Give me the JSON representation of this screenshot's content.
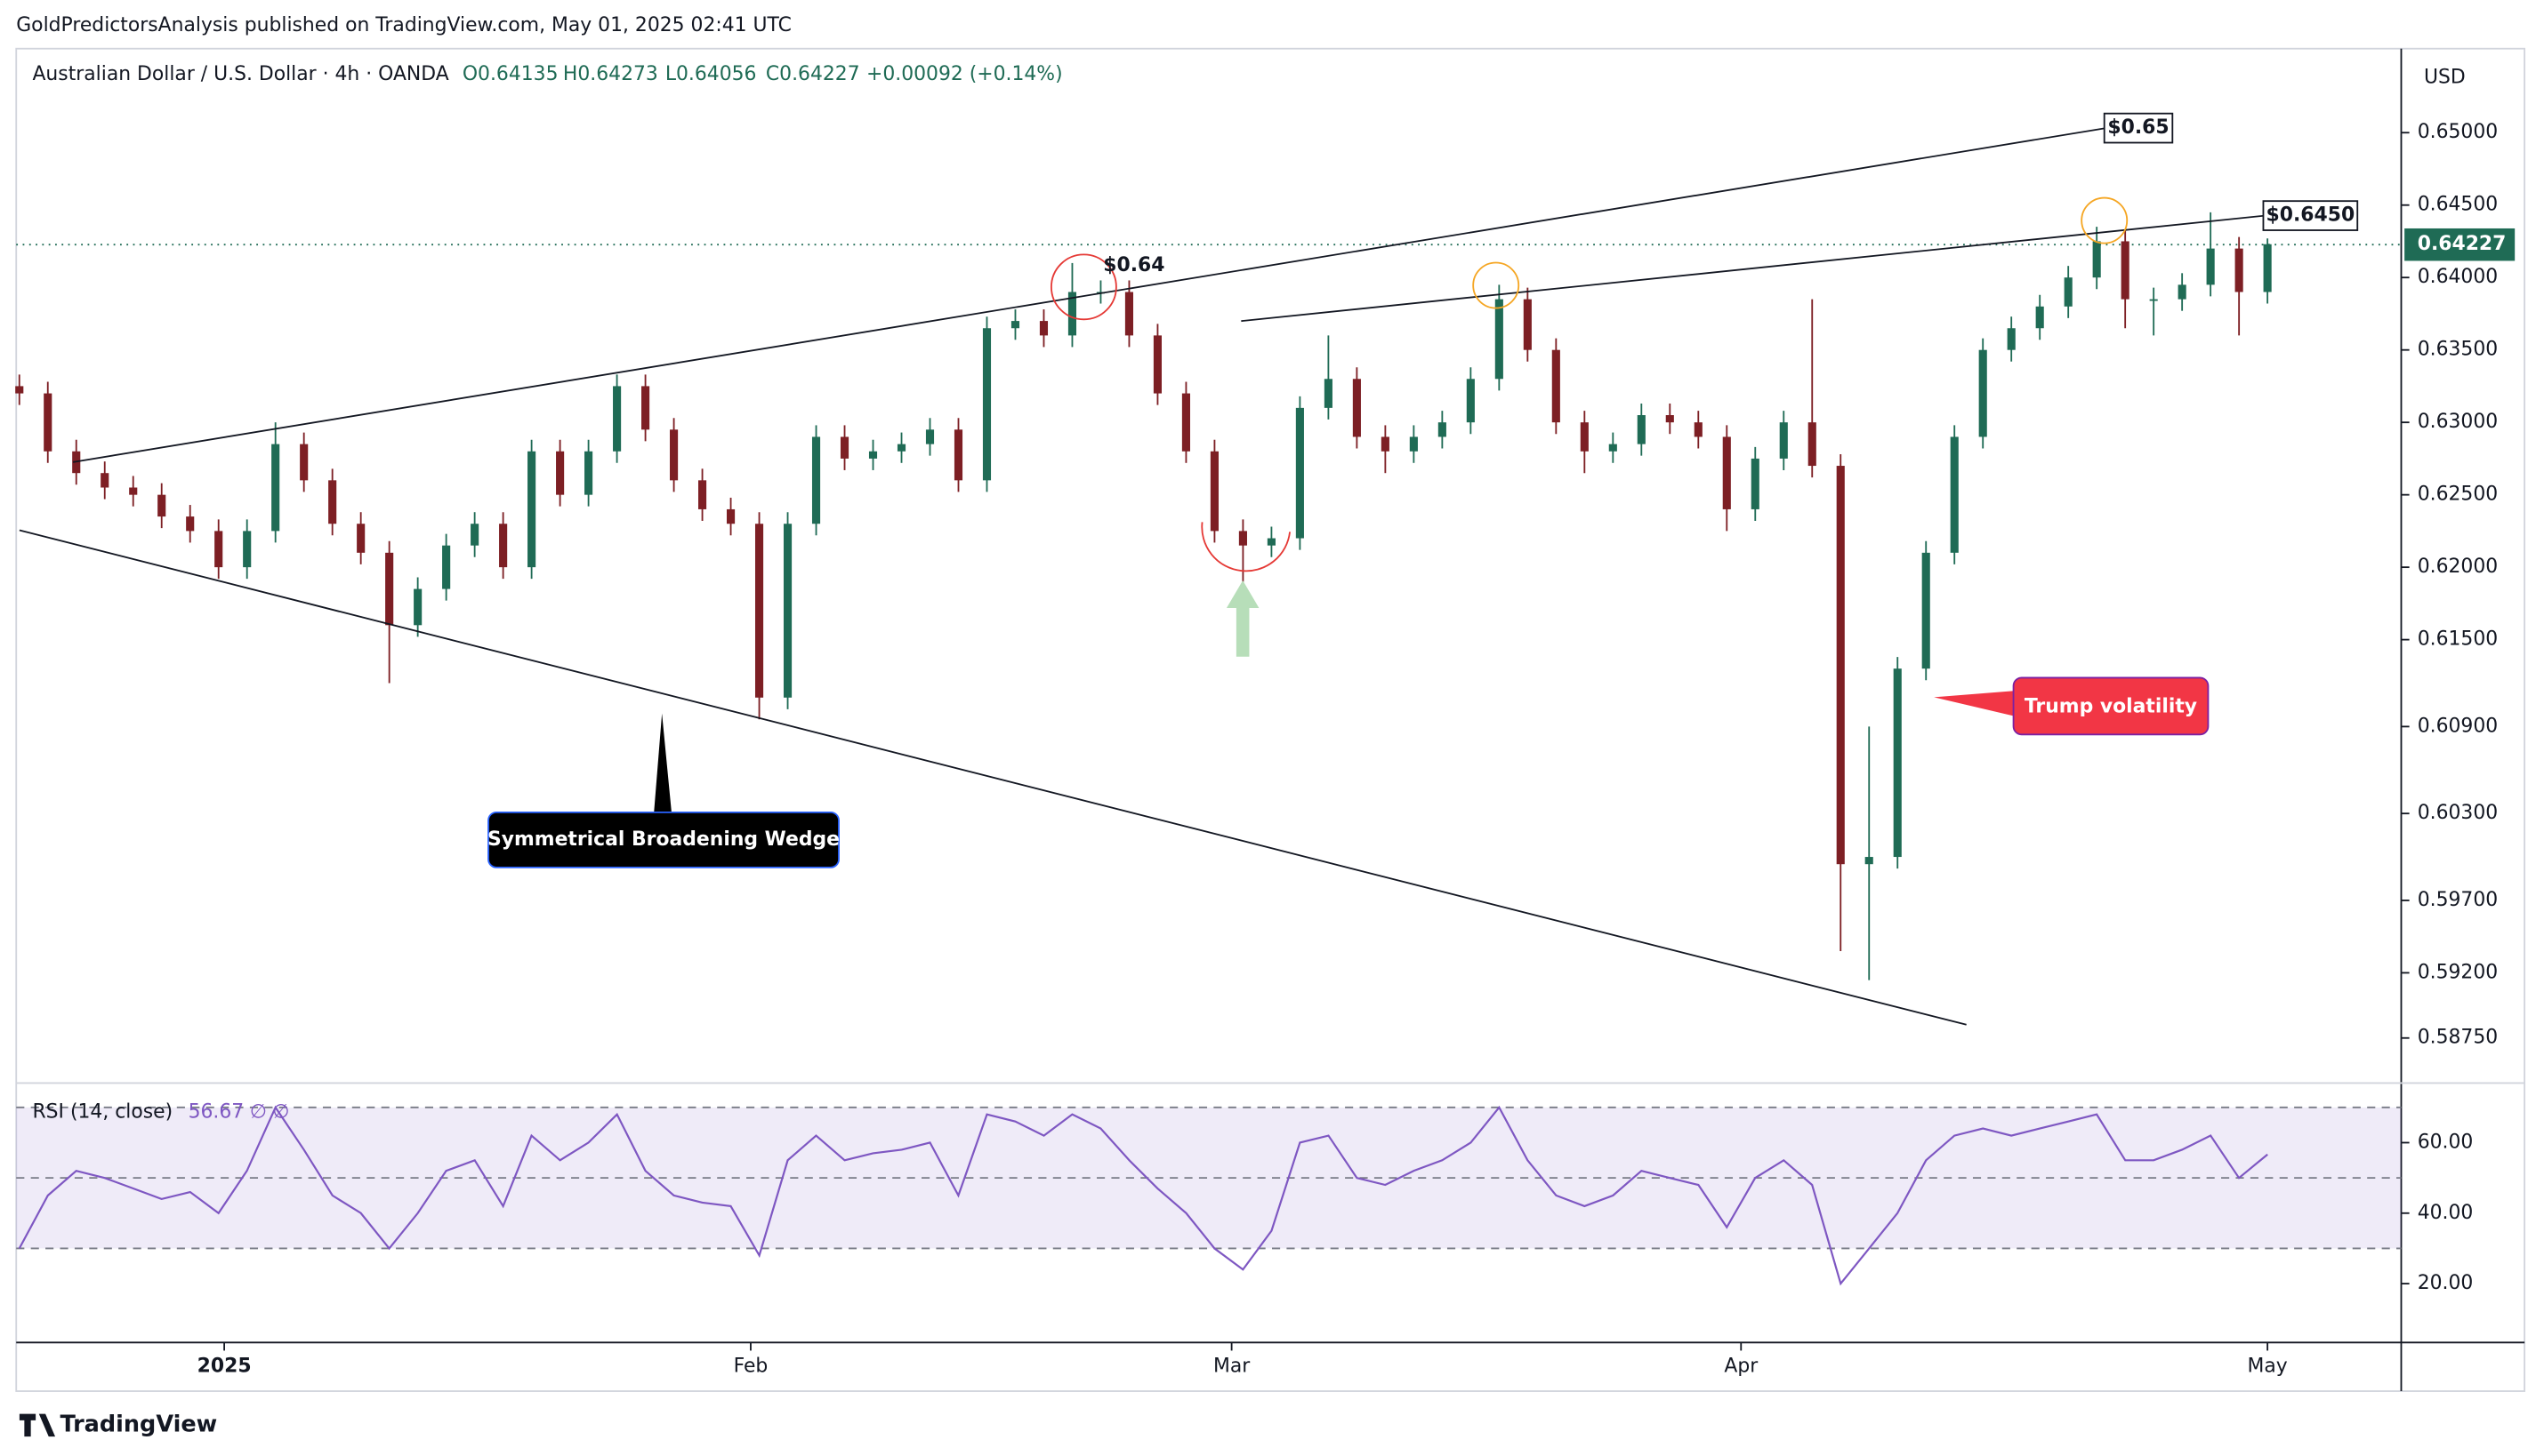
{
  "publisher": "GoldPredictorsAnalysis published on TradingView.com, May 01, 2025 02:41 UTC",
  "brand": "TradingView",
  "chart_data": {
    "type": "candlestick",
    "symbol": "Australian Dollar / U.S. Dollar · 4h · OANDA",
    "ohlc_header": [
      "O0.64135",
      "H0.64273",
      "L0.64056",
      "C0.64227",
      "+0.00092 (+0.14%)"
    ],
    "currency": "USD",
    "up_color": "#1f6b55",
    "down_color": "#7d1f24",
    "ylim": [
      0.5845,
      0.6558
    ],
    "yticks": [
      {
        "value": 0.65,
        "label": "0.65000"
      },
      {
        "value": 0.645,
        "label": "0.64500"
      },
      {
        "value": 0.64,
        "label": "0.64000"
      },
      {
        "value": 0.635,
        "label": "0.63500"
      },
      {
        "value": 0.63,
        "label": "0.63000"
      },
      {
        "value": 0.625,
        "label": "0.62500"
      },
      {
        "value": 0.62,
        "label": "0.62000"
      },
      {
        "value": 0.615,
        "label": "0.61500"
      },
      {
        "value": 0.609,
        "label": "0.60900"
      },
      {
        "value": 0.603,
        "label": "0.60300"
      },
      {
        "value": 0.597,
        "label": "0.59700"
      },
      {
        "value": 0.592,
        "label": "0.59200"
      },
      {
        "value": 0.5875,
        "label": "0.58750"
      }
    ],
    "xlim": [
      -0.11,
      83.7
    ],
    "xticks": [
      {
        "value": 7.2,
        "label": "2025"
      },
      {
        "value": 25.7,
        "label": "Feb"
      },
      {
        "value": 42.6,
        "label": "Mar"
      },
      {
        "value": 60.5,
        "label": "Apr"
      },
      {
        "value": 79,
        "label": "May"
      }
    ],
    "last_price": {
      "value": 0.64227,
      "label": "0.64227"
    },
    "open": [
      0.6325,
      0.632,
      0.628,
      0.6265,
      0.6255,
      0.625,
      0.6235,
      0.6225,
      0.62,
      0.6225,
      0.6285,
      0.626,
      0.623,
      0.621,
      0.616,
      0.6185,
      0.6215,
      0.623,
      0.62,
      0.628,
      0.625,
      0.628,
      0.6325,
      0.6295,
      0.626,
      0.624,
      0.623,
      0.611,
      0.623,
      0.629,
      0.6275,
      0.628,
      0.6285,
      0.6295,
      0.626,
      0.6365,
      0.637,
      0.636,
      0.639,
      0.639,
      0.636,
      0.632,
      0.628,
      0.6225,
      0.6215,
      0.622,
      0.631,
      0.633,
      0.629,
      0.628,
      0.629,
      0.63,
      0.633,
      0.6385,
      0.635,
      0.63,
      0.628,
      0.6285,
      0.6305,
      0.63,
      0.629,
      0.624,
      0.6275,
      0.63,
      0.627,
      0.5995,
      0.6,
      0.613,
      0.621,
      0.629,
      0.635,
      0.6365,
      0.638,
      0.64,
      0.6425,
      0.6385,
      0.6385,
      0.6395,
      0.642,
      0.639
    ],
    "high": [
      0.6333,
      0.6328,
      0.6288,
      0.6273,
      0.6263,
      0.6258,
      0.6243,
      0.6233,
      0.6233,
      0.63,
      0.6293,
      0.6268,
      0.6238,
      0.6218,
      0.6193,
      0.6223,
      0.6238,
      0.6238,
      0.6288,
      0.6288,
      0.6288,
      0.6333,
      0.6333,
      0.6303,
      0.6268,
      0.6248,
      0.6238,
      0.6238,
      0.6298,
      0.6298,
      0.6288,
      0.6293,
      0.6303,
      0.6303,
      0.6373,
      0.6378,
      0.6378,
      0.641,
      0.6398,
      0.6398,
      0.6368,
      0.6328,
      0.6288,
      0.6233,
      0.6228,
      0.6318,
      0.636,
      0.6338,
      0.6298,
      0.6298,
      0.6308,
      0.6338,
      0.6395,
      0.6393,
      0.6358,
      0.6308,
      0.6293,
      0.6313,
      0.6313,
      0.6308,
      0.6298,
      0.6283,
      0.6308,
      0.6385,
      0.6278,
      0.609,
      0.6138,
      0.6218,
      0.6298,
      0.6358,
      0.6373,
      0.6388,
      0.6408,
      0.6435,
      0.6433,
      0.6393,
      0.6403,
      0.6445,
      0.6428,
      0.6427
    ],
    "low": [
      0.6312,
      0.6272,
      0.6257,
      0.6247,
      0.6242,
      0.6227,
      0.6217,
      0.6192,
      0.6192,
      0.6217,
      0.6252,
      0.6222,
      0.6202,
      0.612,
      0.6152,
      0.6177,
      0.6207,
      0.6192,
      0.6192,
      0.6242,
      0.6242,
      0.6272,
      0.6287,
      0.6252,
      0.6232,
      0.6222,
      0.6095,
      0.6102,
      0.6222,
      0.6267,
      0.6267,
      0.6272,
      0.6277,
      0.6252,
      0.6252,
      0.6357,
      0.6352,
      0.6352,
      0.6382,
      0.6352,
      0.6312,
      0.6272,
      0.6217,
      0.619,
      0.6207,
      0.6212,
      0.6302,
      0.6282,
      0.6265,
      0.6272,
      0.6282,
      0.6292,
      0.6322,
      0.6342,
      0.6292,
      0.6265,
      0.6272,
      0.6277,
      0.6292,
      0.6282,
      0.6225,
      0.6232,
      0.6267,
      0.6262,
      0.5935,
      0.5915,
      0.5992,
      0.6122,
      0.6202,
      0.6282,
      0.6342,
      0.6357,
      0.6372,
      0.6392,
      0.6365,
      0.636,
      0.6377,
      0.6387,
      0.636,
      0.6382
    ],
    "close": [
      0.632,
      0.628,
      0.6265,
      0.6255,
      0.625,
      0.6235,
      0.6225,
      0.62,
      0.6225,
      0.6285,
      0.626,
      0.623,
      0.621,
      0.616,
      0.6185,
      0.6215,
      0.623,
      0.62,
      0.628,
      0.625,
      0.628,
      0.6325,
      0.6295,
      0.626,
      0.624,
      0.623,
      0.611,
      0.623,
      0.629,
      0.6275,
      0.628,
      0.6285,
      0.6295,
      0.626,
      0.6365,
      0.637,
      0.636,
      0.639,
      0.639,
      0.636,
      0.632,
      0.628,
      0.6225,
      0.6215,
      0.622,
      0.631,
      0.633,
      0.629,
      0.628,
      0.629,
      0.63,
      0.633,
      0.6385,
      0.635,
      0.63,
      0.628,
      0.6285,
      0.6305,
      0.63,
      0.629,
      0.624,
      0.6275,
      0.63,
      0.627,
      0.5995,
      0.6,
      0.613,
      0.621,
      0.629,
      0.635,
      0.6365,
      0.638,
      0.64,
      0.6425,
      0.6385,
      0.6385,
      0.6395,
      0.642,
      0.639,
      0.6423
    ],
    "annotations": [
      "$0.64",
      "$0.65",
      "$0.6450",
      "Symmetrical Broadening Wedge",
      "Trump volatility"
    ],
    "rsi": {
      "label": "RSI (14, close)",
      "value_label": "56.67",
      "extra_labels": [
        "∅",
        "∅"
      ],
      "color": "#7e57c2",
      "ylim": [
        3.3,
        76.9
      ],
      "yticks": [
        {
          "value": 60,
          "label": "60.00"
        },
        {
          "value": 40,
          "label": "40.00"
        },
        {
          "value": 20,
          "label": "20.00"
        }
      ],
      "bands": [
        70,
        50,
        30
      ],
      "values": [
        30,
        45,
        52,
        50,
        47,
        44,
        46,
        40,
        52,
        70,
        58,
        45,
        40,
        30,
        40,
        52,
        55,
        42,
        62,
        55,
        60,
        68,
        52,
        45,
        43,
        42,
        28,
        55,
        62,
        55,
        57,
        58,
        60,
        45,
        68,
        66,
        62,
        68,
        64,
        55,
        47,
        40,
        30,
        24,
        35,
        60,
        62,
        50,
        48,
        52,
        55,
        60,
        70,
        55,
        45,
        42,
        45,
        52,
        50,
        48,
        36,
        50,
        55,
        48,
        20,
        30,
        40,
        55,
        62,
        64,
        62,
        64,
        66,
        68,
        55,
        55,
        58,
        62,
        50,
        56.67
      ]
    }
  }
}
